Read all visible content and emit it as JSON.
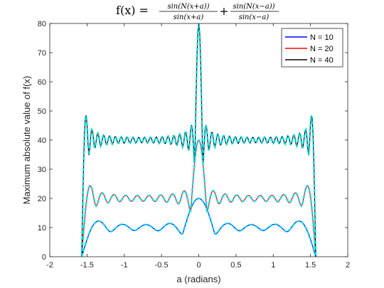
{
  "chart_data": {
    "type": "line",
    "title": {
      "lhs": "f(x) =",
      "frac1_num": "sin(N(x+a))",
      "frac1_den": "sin(x+a)",
      "op": "+",
      "frac2_num": "sin(N(x−a))",
      "frac2_den": "sin(x−a)"
    },
    "xlabel": "a (radians)",
    "ylabel": "Maximum absolute value of f(x)",
    "xlim": [
      -2,
      2
    ],
    "ylim": [
      0,
      80
    ],
    "xticks": [
      "-2",
      "-1.5",
      "-1",
      "-0.5",
      "0",
      "0.5",
      "1",
      "1.5",
      "2"
    ],
    "yticks": [
      "0",
      "10",
      "20",
      "30",
      "40",
      "50",
      "60",
      "70",
      "80"
    ],
    "grid": false,
    "legend_position": "top-right",
    "a_range": [
      -1.5708,
      1.5708
    ],
    "series": [
      {
        "name": "N = 10",
        "N": 10,
        "color": "#0000ff"
      },
      {
        "name": "N = 20",
        "N": 20,
        "color": "#ff0000"
      },
      {
        "name": "N = 40",
        "N": 40,
        "color": "#000000"
      }
    ],
    "overlay_color": "#00e5ee"
  }
}
